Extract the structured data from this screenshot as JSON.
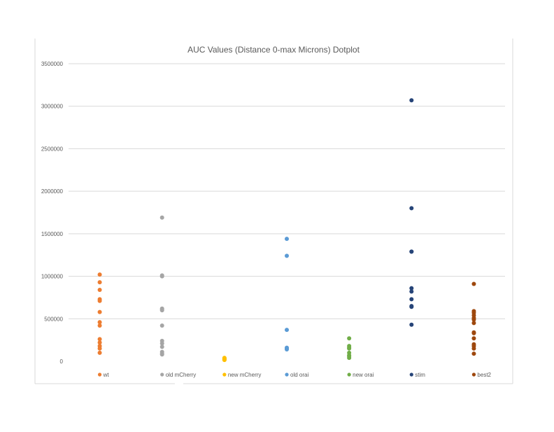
{
  "chart_data": {
    "type": "scatter",
    "title": "AUC Values (Distance 0-max Microns) Dotplot",
    "xlabel": "",
    "ylabel": "",
    "ylim": [
      0,
      3500000
    ],
    "yticks": [
      "0",
      "500000",
      "1000000",
      "1500000",
      "2000000",
      "2500000",
      "3000000",
      "3500000"
    ],
    "grid": true,
    "legend_position": "bottom",
    "series": [
      {
        "name": "wt",
        "color": "#ED7D31",
        "values": [
          1020000,
          930000,
          840000,
          730000,
          710000,
          580000,
          460000,
          420000,
          260000,
          220000,
          180000,
          150000,
          100000
        ]
      },
      {
        "name": "old mCherry",
        "color": "#A5A5A5",
        "values": [
          1690000,
          1010000,
          1000000,
          620000,
          610000,
          600000,
          420000,
          240000,
          210000,
          170000,
          110000,
          90000,
          80000
        ]
      },
      {
        "name": "new mCherry",
        "color": "#FFC000",
        "values": [
          40000,
          35000,
          30000,
          25000,
          20000,
          15000
        ]
      },
      {
        "name": "old orai",
        "color": "#5B9BD5",
        "values": [
          1440000,
          1240000,
          370000,
          160000,
          150000,
          140000
        ]
      },
      {
        "name": "new orai",
        "color": "#70AD47",
        "values": [
          270000,
          180000,
          160000,
          150000,
          100000,
          70000,
          60000,
          40000
        ]
      },
      {
        "name": "stim",
        "color": "#264478",
        "values": [
          3070000,
          1800000,
          1290000,
          1290000,
          860000,
          820000,
          730000,
          650000,
          640000,
          430000
        ]
      },
      {
        "name": "best2",
        "color": "#9E480E",
        "values": [
          910000,
          590000,
          570000,
          540000,
          510000,
          490000,
          450000,
          340000,
          330000,
          270000,
          200000,
          180000,
          150000,
          90000
        ]
      }
    ]
  }
}
